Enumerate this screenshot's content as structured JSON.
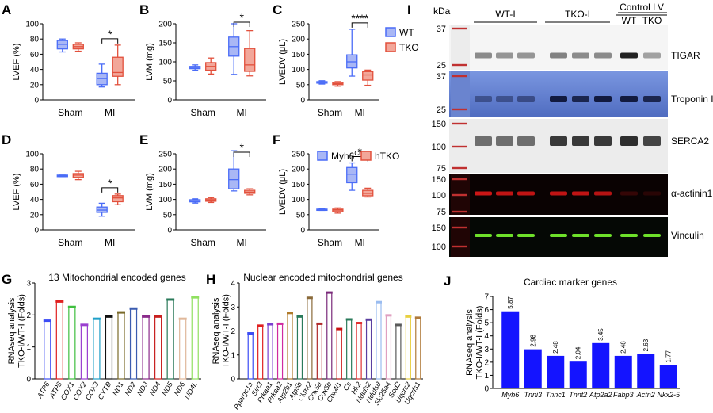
{
  "colors": {
    "wt": "#4a6cf7",
    "tko": "#e2503c",
    "wt_fill": "#a9b7f5",
    "tko_fill": "#f2a79a",
    "bar_blue": "#1414ff"
  },
  "legend_top": {
    "entries": [
      "WT",
      "TKO"
    ]
  },
  "legend_mid": {
    "entries": [
      "Myh6Cre",
      "hTKO"
    ]
  },
  "chart_data": [
    {
      "panel": "A",
      "type": "box",
      "ylabel": "LVEF (%)",
      "categories": [
        "Sham",
        "MI"
      ],
      "ylim": [
        0,
        100
      ],
      "yticks": [
        0,
        20,
        40,
        60,
        80,
        100
      ],
      "groups": [
        {
          "series": "WT",
          "category": "Sham",
          "whisker": [
            63,
            80
          ],
          "box": [
            67,
            78
          ],
          "median": 73
        },
        {
          "series": "TKO",
          "category": "Sham",
          "whisker": [
            64,
            75
          ],
          "box": [
            67,
            73
          ],
          "median": 70
        },
        {
          "series": "WT",
          "category": "MI",
          "whisker": [
            17,
            47
          ],
          "box": [
            20,
            35
          ],
          "median": 28
        },
        {
          "series": "TKO",
          "category": "MI",
          "whisker": [
            20,
            72
          ],
          "box": [
            31,
            56
          ],
          "median": 36
        }
      ],
      "significance": "*"
    },
    {
      "panel": "B",
      "type": "box",
      "ylabel": "LVM (mg)",
      "categories": [
        "Sham",
        "MI"
      ],
      "ylim": [
        0,
        200
      ],
      "yticks": [
        0,
        50,
        100,
        150,
        200
      ],
      "groups": [
        {
          "series": "WT",
          "category": "Sham",
          "whisker": [
            78,
            92
          ],
          "box": [
            82,
            88
          ],
          "median": 85
        },
        {
          "series": "TKO",
          "category": "Sham",
          "whisker": [
            68,
            110
          ],
          "box": [
            78,
            98
          ],
          "median": 88
        },
        {
          "series": "WT",
          "category": "MI",
          "whisker": [
            67,
            200
          ],
          "box": [
            115,
            165
          ],
          "median": 140
        },
        {
          "series": "TKO",
          "category": "MI",
          "whisker": [
            63,
            182
          ],
          "box": [
            75,
            135
          ],
          "median": 92
        }
      ],
      "significance": "*"
    },
    {
      "panel": "C",
      "type": "box",
      "ylabel": "LVEDV (μL)",
      "categories": [
        "Sham",
        "MI"
      ],
      "ylim": [
        0,
        250
      ],
      "yticks": [
        0,
        50,
        100,
        150,
        200,
        250
      ],
      "groups": [
        {
          "series": "WT",
          "category": "Sham",
          "whisker": [
            52,
            63
          ],
          "box": [
            55,
            60
          ],
          "median": 58
        },
        {
          "series": "TKO",
          "category": "Sham",
          "whisker": [
            45,
            60
          ],
          "box": [
            50,
            57
          ],
          "median": 53
        },
        {
          "series": "WT",
          "category": "MI",
          "whisker": [
            78,
            232
          ],
          "box": [
            105,
            148
          ],
          "median": 125
        },
        {
          "series": "TKO",
          "category": "MI",
          "whisker": [
            48,
            98
          ],
          "box": [
            65,
            93
          ],
          "median": 82
        }
      ],
      "significance": "****"
    },
    {
      "panel": "D",
      "type": "box",
      "ylabel": "LVEF (%)",
      "categories": [
        "Sham",
        "MI"
      ],
      "ylim": [
        0,
        100
      ],
      "yticks": [
        0,
        20,
        40,
        60,
        80,
        100
      ],
      "groups": [
        {
          "series": "Myh6Cre",
          "category": "Sham",
          "whisker": [
            70,
            72
          ],
          "box": [
            70,
            72
          ],
          "median": 71
        },
        {
          "series": "hTKO",
          "category": "Sham",
          "whisker": [
            66,
            77
          ],
          "box": [
            69,
            74
          ],
          "median": 72
        },
        {
          "series": "Myh6Cre",
          "category": "MI",
          "whisker": [
            18,
            35
          ],
          "box": [
            23,
            30
          ],
          "median": 26
        },
        {
          "series": "hTKO",
          "category": "MI",
          "whisker": [
            33,
            47
          ],
          "box": [
            37,
            45
          ],
          "median": 42
        }
      ],
      "significance": "*"
    },
    {
      "panel": "E",
      "type": "box",
      "ylabel": "LVM (mg)",
      "categories": [
        "Sham",
        "MI"
      ],
      "ylim": [
        0,
        250
      ],
      "yticks": [
        0,
        50,
        100,
        150,
        200,
        250
      ],
      "groups": [
        {
          "series": "Myh6Cre",
          "category": "Sham",
          "whisker": [
            88,
            102
          ],
          "box": [
            92,
            99
          ],
          "median": 95
        },
        {
          "series": "hTKO",
          "category": "Sham",
          "whisker": [
            90,
            106
          ],
          "box": [
            94,
            102
          ],
          "median": 98
        },
        {
          "series": "Myh6Cre",
          "category": "MI",
          "whisker": [
            128,
            260
          ],
          "box": [
            135,
            200
          ],
          "median": 165
        },
        {
          "series": "hTKO",
          "category": "MI",
          "whisker": [
            115,
            135
          ],
          "box": [
            120,
            130
          ],
          "median": 124
        }
      ],
      "significance": "*"
    },
    {
      "panel": "F",
      "type": "box",
      "ylabel": "LVEDV (μL)",
      "categories": [
        "Sham",
        "MI"
      ],
      "ylim": [
        0,
        250
      ],
      "yticks": [
        0,
        50,
        100,
        150,
        200,
        250
      ],
      "groups": [
        {
          "series": "Myh6Cre",
          "category": "Sham",
          "whisker": [
            64,
            70
          ],
          "box": [
            65,
            68
          ],
          "median": 67
        },
        {
          "series": "hTKO",
          "category": "Sham",
          "whisker": [
            55,
            72
          ],
          "box": [
            60,
            68
          ],
          "median": 65
        },
        {
          "series": "Myh6Cre",
          "category": "MI",
          "whisker": [
            130,
            220
          ],
          "box": [
            155,
            205
          ],
          "median": 183
        },
        {
          "series": "hTKO",
          "category": "MI",
          "whisker": [
            108,
            137
          ],
          "box": [
            112,
            130
          ],
          "median": 120
        }
      ],
      "significance": "*"
    },
    {
      "panel": "G",
      "type": "bar",
      "title": "13 Mitochondrial encoded genes",
      "ylabel": "RNAseq analysis TKO-I/WT-I (Folds)",
      "ylim": [
        0,
        3
      ],
      "yticks": [
        0,
        1,
        2,
        3
      ],
      "categories": [
        "ATP6",
        "ATP8",
        "COX1",
        "COX2",
        "COX3",
        "CYTB",
        "ND1",
        "ND2",
        "ND3",
        "ND4",
        "ND5",
        "ND6",
        "ND4L"
      ],
      "values": [
        1.82,
        2.42,
        2.25,
        1.69,
        1.88,
        1.95,
        2.08,
        2.2,
        1.95,
        1.95,
        2.48,
        1.88,
        2.55
      ],
      "colors": [
        "#3b4cf5",
        "#e02020",
        "#3fbf3f",
        "#9a3fd0",
        "#20a0c8",
        "#111111",
        "#7a6a2a",
        "#3b5cb0",
        "#8a2a8a",
        "#c82020",
        "#2a7a5a",
        "#e0b89a",
        "#90e060"
      ]
    },
    {
      "panel": "H",
      "type": "bar",
      "title": "Nuclear encoded mitochondrial genes",
      "ylabel": "RNAseq analysis TKO-I/WT-I (Folds)",
      "ylim": [
        0,
        4
      ],
      "yticks": [
        0,
        1,
        2,
        3,
        4
      ],
      "categories": [
        "Ppargc1a",
        "Sirt3",
        "Prkaa1",
        "Prkaa2",
        "Atp2b1",
        "Atp5b",
        "Ckmt2",
        "Cox5a",
        "Cox5b",
        "Cox4i1",
        "Cs",
        "Hk2",
        "Ndufs2",
        "Ndufs8",
        "Slc25a4",
        "Sod2",
        "Uqcrc2",
        "Uqcrfs1"
      ],
      "values": [
        1.9,
        2.22,
        2.28,
        2.3,
        2.75,
        2.6,
        3.38,
        2.3,
        3.6,
        2.08,
        2.48,
        2.33,
        2.47,
        3.2,
        2.65,
        2.25,
        2.6,
        2.55
      ],
      "colors": [
        "#3b4cf5",
        "#e02020",
        "#7a3fd0",
        "#d02aa0",
        "#b07a2a",
        "#2a7a5a",
        "#8a6a3a",
        "#b02a2a",
        "#7a2a7a",
        "#c81010",
        "#2a7a5a",
        "#e03030",
        "#5a3fa0",
        "#9abcf0",
        "#e0a0c0",
        "#5a5a5a",
        "#e8d040",
        "#b07a3a"
      ]
    },
    {
      "panel": "J",
      "type": "bar",
      "title": "Cardiac marker genes",
      "ylabel": "RNAseq analysis TKO-I/WT-I (Folds)",
      "ylim": [
        0,
        7
      ],
      "yticks": [
        0,
        1,
        2,
        3,
        4,
        5,
        6,
        7
      ],
      "categories": [
        "Myh6",
        "Tnni3",
        "Tnnc1",
        "Tnnt2",
        "Atp2a2",
        "Fabp3",
        "Actn2",
        "Nkx2-5"
      ],
      "values": [
        5.87,
        2.98,
        2.48,
        2.04,
        3.45,
        2.48,
        2.63,
        1.77
      ],
      "labels": [
        "5.87",
        "2.98",
        "2.48",
        "2.04",
        "3.45",
        "2.48",
        "2.63",
        "1.77"
      ]
    }
  ],
  "blot": {
    "panel": "I",
    "unit_label": "kDa",
    "groups": [
      "WT-I",
      "TKO-I",
      "Control LV"
    ],
    "control_lanes": [
      "WT",
      "TKO"
    ],
    "rows": [
      {
        "label": "TIGAR",
        "markers": [
          "37",
          "25"
        ],
        "bg": "#f5f5f5",
        "band": "#222222"
      },
      {
        "label": "Troponin I",
        "markers": [
          "37",
          "25"
        ],
        "bg": "#5c78c8",
        "band": "#0a1030"
      },
      {
        "label": "SERCA2",
        "markers": [
          "150",
          "100",
          "75"
        ],
        "bg": "#ececec",
        "band": "#1a1a1a"
      },
      {
        "label": "α-actinin1",
        "markers": [
          "150",
          "100",
          "75"
        ],
        "bg": "#0a0202",
        "band": "#e01818"
      },
      {
        "label": "Vinculin",
        "markers": [
          "150",
          "100"
        ],
        "bg": "#050805",
        "band": "#6ee02a"
      }
    ]
  }
}
